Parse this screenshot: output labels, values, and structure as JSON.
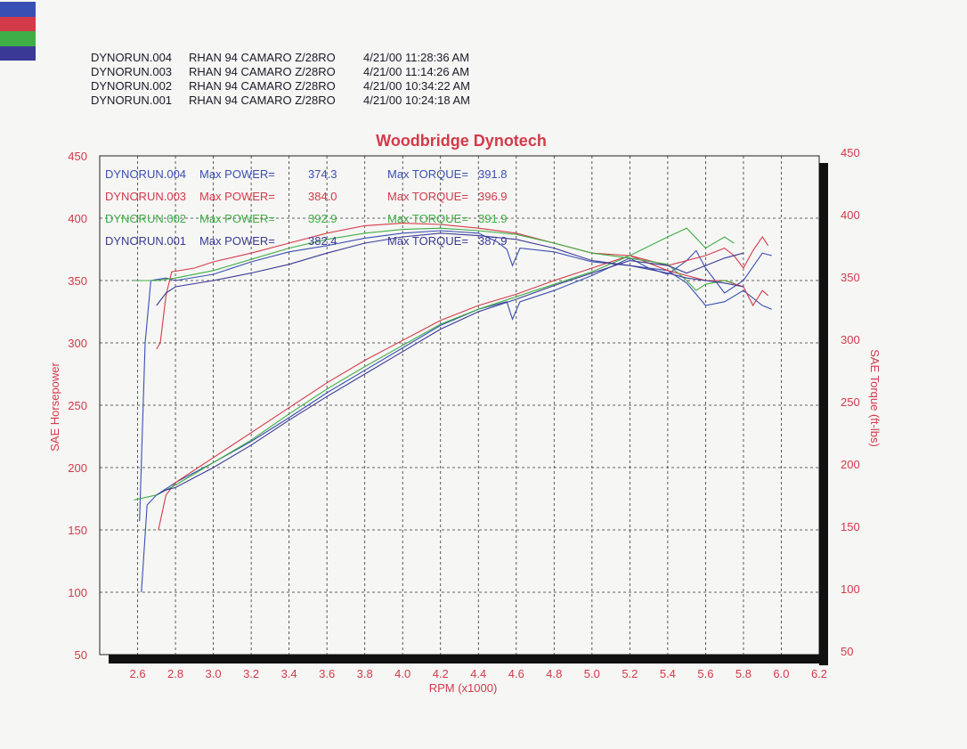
{
  "runs": [
    {
      "file": "DYNORUN.004",
      "car": "RHAN 94 CAMARO Z/28RO",
      "datetime": "4/21/00 11:28:36 AM",
      "color": "#3a4fb3"
    },
    {
      "file": "DYNORUN.003",
      "car": "RHAN 94 CAMARO Z/28RO",
      "datetime": "4/21/00 11:14:26 AM",
      "color": "#d33a4a"
    },
    {
      "file": "DYNORUN.002",
      "car": "RHAN 94 CAMARO Z/28RO",
      "datetime": "4/21/00 10:34:22 AM",
      "color": "#3fae46"
    },
    {
      "file": "DYNORUN.001",
      "car": "RHAN 94 CAMARO Z/28RO",
      "datetime": "4/21/00 10:24:18 AM",
      "color": "#3a3a96"
    }
  ],
  "chart_data": {
    "type": "line",
    "title": "Woodbridge Dynotech",
    "xlabel": "RPM (x1000)",
    "ylabel": "SAE Horsepower",
    "y2label": "SAE Torque (ft-lbs)",
    "xlim": [
      2.4,
      6.2
    ],
    "ylim": [
      50,
      450
    ],
    "y2lim": [
      50,
      450
    ],
    "x_ticks": [
      "2.6",
      "2.8",
      "3.0",
      "3.2",
      "3.4",
      "3.6",
      "3.8",
      "4.0",
      "4.2",
      "4.4",
      "4.6",
      "4.8",
      "5.0",
      "5.2",
      "5.4",
      "5.6",
      "5.8",
      "6.0",
      "6.2"
    ],
    "y_ticks": [
      "50",
      "100",
      "150",
      "200",
      "250",
      "300",
      "350",
      "400",
      "450"
    ],
    "y2_ticks": [
      "50",
      "100",
      "150",
      "200",
      "250",
      "300",
      "350",
      "400",
      "450"
    ],
    "grid": true,
    "summary": [
      {
        "run": "DYNORUN.004",
        "power_label": "Max POWER=",
        "power": "374.3",
        "torque_label": "Max TORQUE=",
        "torque": "391.8",
        "color": "#3a4fb3"
      },
      {
        "run": "DYNORUN.003",
        "power_label": "Max POWER=",
        "power": "384.0",
        "torque_label": "Max TORQUE=",
        "torque": "396.9",
        "color": "#d33a4a"
      },
      {
        "run": "DYNORUN.002",
        "power_label": "Max POWER=",
        "power": "392.9",
        "torque_label": "Max TORQUE=",
        "torque": "391.9",
        "color": "#3fae46"
      },
      {
        "run": "DYNORUN.001",
        "power_label": "Max POWER=",
        "power": "382.4",
        "torque_label": "Max TORQUE=",
        "torque": "387.9",
        "color": "#3a3a96"
      }
    ],
    "series": [
      {
        "name": "DYNORUN.004",
        "color": "#3a4fb3",
        "horsepower": [
          [
            2.62,
            100
          ],
          [
            2.65,
            170
          ],
          [
            2.7,
            178
          ],
          [
            2.8,
            188
          ],
          [
            3.0,
            204
          ],
          [
            3.2,
            221
          ],
          [
            3.4,
            240
          ],
          [
            3.6,
            260
          ],
          [
            3.8,
            278
          ],
          [
            4.0,
            296
          ],
          [
            4.2,
            314
          ],
          [
            4.4,
            327
          ],
          [
            4.55,
            333
          ],
          [
            4.58,
            319
          ],
          [
            4.62,
            333
          ],
          [
            4.8,
            342
          ],
          [
            5.0,
            354
          ],
          [
            5.2,
            368
          ],
          [
            5.3,
            360
          ],
          [
            5.4,
            355
          ],
          [
            5.5,
            366
          ],
          [
            5.55,
            374
          ],
          [
            5.6,
            360
          ],
          [
            5.7,
            340
          ],
          [
            5.8,
            350
          ],
          [
            5.9,
            372
          ],
          [
            5.95,
            370
          ]
        ],
        "torque": [
          [
            2.61,
            157
          ],
          [
            2.64,
            300
          ],
          [
            2.67,
            350
          ],
          [
            2.75,
            352
          ],
          [
            2.8,
            350
          ],
          [
            3.0,
            355
          ],
          [
            3.2,
            365
          ],
          [
            3.4,
            373
          ],
          [
            3.6,
            378
          ],
          [
            3.8,
            384
          ],
          [
            4.0,
            388
          ],
          [
            4.2,
            390
          ],
          [
            4.4,
            388
          ],
          [
            4.5,
            381
          ],
          [
            4.55,
            375
          ],
          [
            4.58,
            362
          ],
          [
            4.62,
            376
          ],
          [
            4.8,
            373
          ],
          [
            5.0,
            365
          ],
          [
            5.2,
            362
          ],
          [
            5.4,
            358
          ],
          [
            5.5,
            348
          ],
          [
            5.6,
            330
          ],
          [
            5.7,
            333
          ],
          [
            5.8,
            342
          ],
          [
            5.9,
            330
          ],
          [
            5.95,
            327
          ]
        ]
      },
      {
        "name": "DYNORUN.003",
        "color": "#d33a4a",
        "horsepower": [
          [
            2.71,
            150
          ],
          [
            2.75,
            178
          ],
          [
            2.8,
            188
          ],
          [
            3.0,
            208
          ],
          [
            3.2,
            228
          ],
          [
            3.4,
            248
          ],
          [
            3.6,
            268
          ],
          [
            3.8,
            286
          ],
          [
            4.0,
            302
          ],
          [
            4.2,
            318
          ],
          [
            4.4,
            330
          ],
          [
            4.6,
            339
          ],
          [
            4.8,
            350
          ],
          [
            5.0,
            360
          ],
          [
            5.2,
            370
          ],
          [
            5.4,
            362
          ],
          [
            5.6,
            370
          ],
          [
            5.7,
            376
          ],
          [
            5.75,
            370
          ],
          [
            5.8,
            360
          ],
          [
            5.85,
            374
          ],
          [
            5.9,
            385
          ],
          [
            5.93,
            378
          ]
        ],
        "torque": [
          [
            2.7,
            295
          ],
          [
            2.72,
            300
          ],
          [
            2.75,
            338
          ],
          [
            2.78,
            357
          ],
          [
            2.9,
            360
          ],
          [
            3.0,
            365
          ],
          [
            3.2,
            372
          ],
          [
            3.4,
            380
          ],
          [
            3.6,
            388
          ],
          [
            3.8,
            394
          ],
          [
            4.0,
            396
          ],
          [
            4.2,
            395
          ],
          [
            4.4,
            392
          ],
          [
            4.6,
            388
          ],
          [
            4.8,
            380
          ],
          [
            5.0,
            372
          ],
          [
            5.2,
            370
          ],
          [
            5.4,
            358
          ],
          [
            5.6,
            350
          ],
          [
            5.7,
            350
          ],
          [
            5.8,
            345
          ],
          [
            5.85,
            330
          ],
          [
            5.9,
            342
          ],
          [
            5.93,
            338
          ]
        ]
      },
      {
        "name": "DYNORUN.002",
        "color": "#3fae46",
        "horsepower": [
          [
            2.58,
            174
          ],
          [
            2.7,
            178
          ],
          [
            2.8,
            186
          ],
          [
            3.0,
            204
          ],
          [
            3.2,
            222
          ],
          [
            3.4,
            243
          ],
          [
            3.6,
            263
          ],
          [
            3.8,
            281
          ],
          [
            4.0,
            298
          ],
          [
            4.2,
            315
          ],
          [
            4.4,
            327
          ],
          [
            4.6,
            337
          ],
          [
            4.8,
            347
          ],
          [
            5.0,
            357
          ],
          [
            5.2,
            370
          ],
          [
            5.4,
            385
          ],
          [
            5.5,
            392
          ],
          [
            5.55,
            384
          ],
          [
            5.6,
            376
          ],
          [
            5.7,
            385
          ],
          [
            5.75,
            380
          ]
        ],
        "torque": [
          [
            2.58,
            350
          ],
          [
            2.7,
            350
          ],
          [
            2.8,
            352
          ],
          [
            3.0,
            358
          ],
          [
            3.2,
            367
          ],
          [
            3.4,
            376
          ],
          [
            3.6,
            383
          ],
          [
            3.8,
            388
          ],
          [
            4.0,
            391
          ],
          [
            4.2,
            392
          ],
          [
            4.4,
            390
          ],
          [
            4.6,
            387
          ],
          [
            4.8,
            380
          ],
          [
            5.0,
            372
          ],
          [
            5.2,
            368
          ],
          [
            5.4,
            363
          ],
          [
            5.5,
            350
          ],
          [
            5.55,
            342
          ],
          [
            5.6,
            347
          ],
          [
            5.7,
            350
          ],
          [
            5.75,
            348
          ]
        ]
      },
      {
        "name": "DYNORUN.001",
        "color": "#3a3a96",
        "horsepower": [
          [
            2.7,
            178
          ],
          [
            2.75,
            182
          ],
          [
            2.8,
            184
          ],
          [
            3.0,
            200
          ],
          [
            3.2,
            218
          ],
          [
            3.4,
            238
          ],
          [
            3.6,
            257
          ],
          [
            3.8,
            275
          ],
          [
            4.0,
            293
          ],
          [
            4.2,
            311
          ],
          [
            4.4,
            325
          ],
          [
            4.6,
            335
          ],
          [
            4.8,
            346
          ],
          [
            5.0,
            356
          ],
          [
            5.2,
            366
          ],
          [
            5.4,
            362
          ],
          [
            5.5,
            356
          ],
          [
            5.6,
            362
          ],
          [
            5.7,
            368
          ],
          [
            5.8,
            372
          ]
        ],
        "torque": [
          [
            2.7,
            330
          ],
          [
            2.75,
            340
          ],
          [
            2.8,
            345
          ],
          [
            3.0,
            350
          ],
          [
            3.2,
            356
          ],
          [
            3.4,
            363
          ],
          [
            3.6,
            372
          ],
          [
            3.8,
            380
          ],
          [
            4.0,
            385
          ],
          [
            4.2,
            388
          ],
          [
            4.4,
            386
          ],
          [
            4.6,
            383
          ],
          [
            4.8,
            376
          ],
          [
            5.0,
            366
          ],
          [
            5.2,
            362
          ],
          [
            5.4,
            356
          ],
          [
            5.5,
            352
          ],
          [
            5.6,
            350
          ],
          [
            5.7,
            348
          ],
          [
            5.8,
            345
          ]
        ]
      }
    ]
  }
}
